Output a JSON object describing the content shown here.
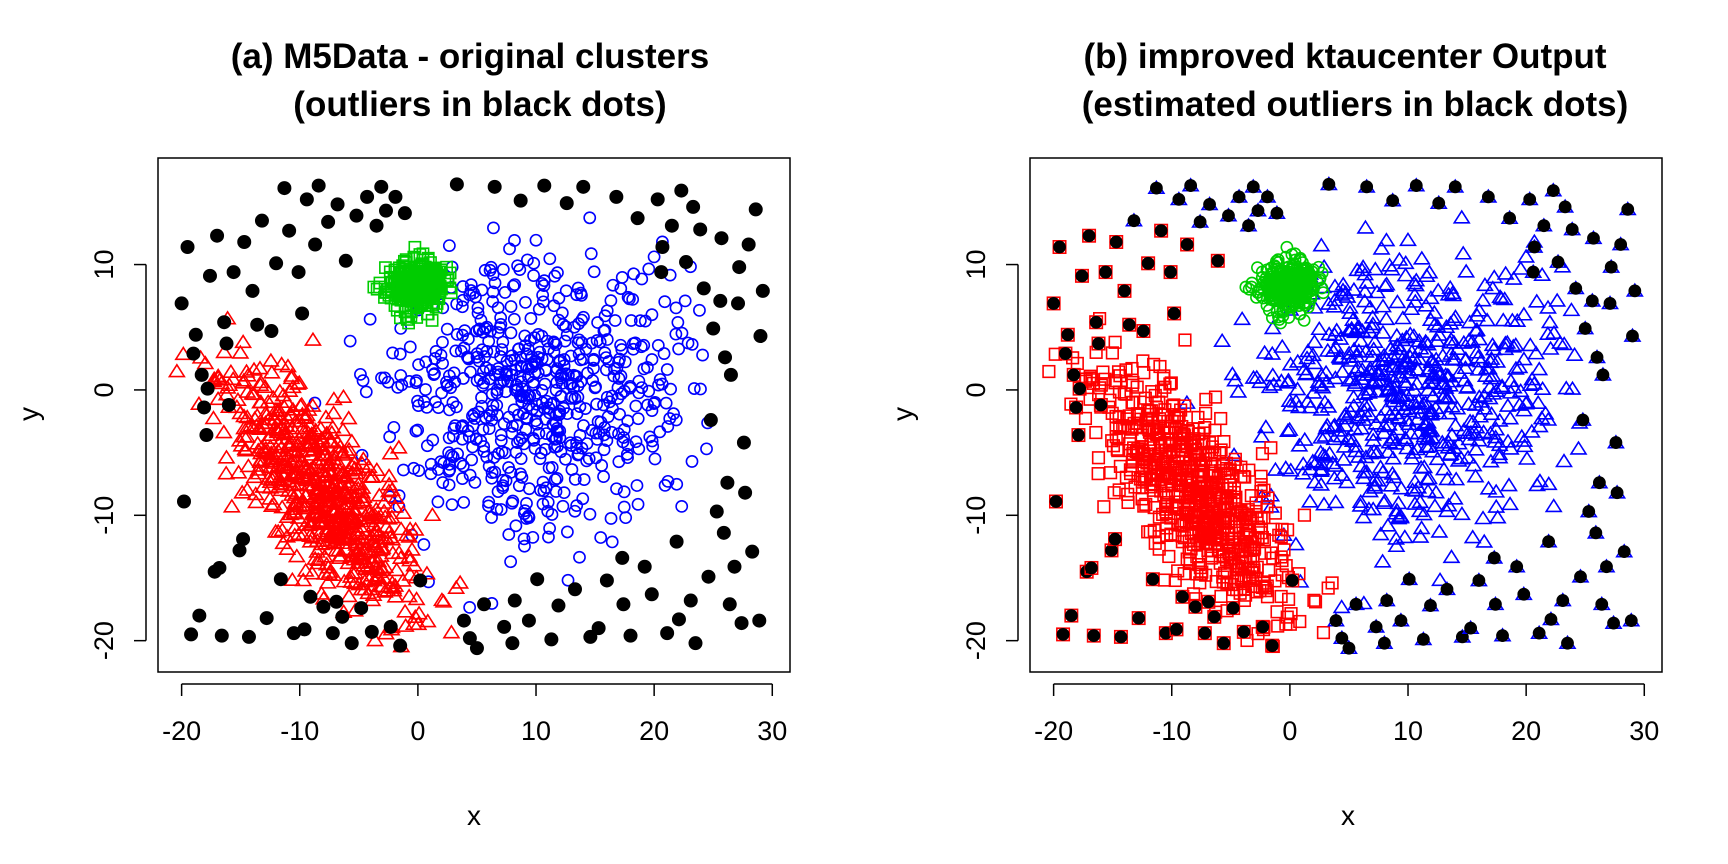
{
  "colors": {
    "outlier": "#000000",
    "cluster_red": "#ff0000",
    "cluster_green": "#00cc00",
    "cluster_blue": "#0000ff",
    "frame": "#000000"
  },
  "chart_data": [
    {
      "type": "scatter",
      "title_line1": "(a) M5Data - original clusters",
      "title_line2": "(outliers in black dots)",
      "xlabel": "x",
      "ylabel": "y",
      "xlim": [
        -22,
        31.5
      ],
      "ylim": [
        -22.5,
        18.5
      ],
      "xticks": [
        -20,
        -10,
        0,
        10,
        20,
        30
      ],
      "yticks": [
        -20,
        -10,
        0,
        10
      ],
      "xtick_labels": [
        "-20",
        "-10",
        "0",
        "10",
        "20",
        "30"
      ],
      "ytick_labels": [
        "-20",
        "-10",
        "0",
        "10"
      ],
      "grid": false,
      "marker_style": {
        "outliers": "filled-circle",
        "red": "open-triangle",
        "green": "open-square",
        "blue": "open-circle"
      },
      "series_spec": {
        "red": {
          "center": [
            -8,
            -8
          ],
          "sd_major": 5.6,
          "sd_minor": 2.3,
          "angle_deg": -52,
          "n": 700,
          "seed": 11
        },
        "green": {
          "center": [
            -0.2,
            8.3
          ],
          "sd_major": 1.2,
          "sd_minor": 1.0,
          "angle_deg": 0,
          "n": 300,
          "seed": 23
        },
        "blue": {
          "center": [
            10,
            0
          ],
          "sd_major": 6.0,
          "sd_minor": 5.5,
          "angle_deg": 10,
          "n": 650,
          "seed": 37
        }
      },
      "outliers": [
        [
          -20,
          6.9
        ],
        [
          -19.8,
          -8.9
        ],
        [
          -19.5,
          11.4
        ],
        [
          -19.2,
          -19.5
        ],
        [
          -19,
          2.9
        ],
        [
          -18.8,
          4.4
        ],
        [
          -18.5,
          -18
        ],
        [
          -18.3,
          1.2
        ],
        [
          -18.1,
          -1.4
        ],
        [
          -17.9,
          -3.6
        ],
        [
          -17.6,
          9.1
        ],
        [
          -17.2,
          -14.5
        ],
        [
          -17,
          12.3
        ],
        [
          -16.8,
          -14.2
        ],
        [
          -16.6,
          -19.6
        ],
        [
          -16.4,
          5.4
        ],
        [
          -16.2,
          3.7
        ],
        [
          -16,
          -1.2
        ],
        [
          -15.6,
          9.4
        ],
        [
          -15.1,
          -12.8
        ],
        [
          -14.7,
          11.8
        ],
        [
          -14.3,
          -19.7
        ],
        [
          -14,
          7.9
        ],
        [
          -13.6,
          5.2
        ],
        [
          -13.2,
          13.5
        ],
        [
          -12.8,
          -18.2
        ],
        [
          -12.4,
          4.7
        ],
        [
          -12,
          10.1
        ],
        [
          -11.6,
          -15.1
        ],
        [
          -11.3,
          16.1
        ],
        [
          -10.9,
          12.7
        ],
        [
          -10.5,
          -19.4
        ],
        [
          -10.1,
          9.4
        ],
        [
          -9.8,
          6.1
        ],
        [
          -9.4,
          15.2
        ],
        [
          -9.1,
          -16.5
        ],
        [
          -8.7,
          11.6
        ],
        [
          -8.4,
          16.3
        ],
        [
          -8,
          -17.3
        ],
        [
          -7.6,
          13.4
        ],
        [
          -7.2,
          -19.4
        ],
        [
          -6.8,
          14.8
        ],
        [
          -6.4,
          -18.1
        ],
        [
          -6.1,
          10.3
        ],
        [
          -5.6,
          -20.2
        ],
        [
          -5.2,
          13.9
        ],
        [
          -4.8,
          -17.4
        ],
        [
          -4.3,
          15.4
        ],
        [
          -3.9,
          -19.3
        ],
        [
          -3.5,
          13.1
        ],
        [
          -3.1,
          16.2
        ],
        [
          -2.7,
          14.3
        ],
        [
          -2.3,
          -18.9
        ],
        [
          -1.9,
          15.4
        ],
        [
          -1.5,
          -20.4
        ],
        [
          -1.1,
          14.1
        ],
        [
          3.3,
          16.4
        ],
        [
          3.9,
          -18.4
        ],
        [
          4.4,
          -19.8
        ],
        [
          5,
          -20.6
        ],
        [
          5.6,
          -17.1
        ],
        [
          6.5,
          16.2
        ],
        [
          7.3,
          -18.9
        ],
        [
          8,
          -20.2
        ],
        [
          8.7,
          15.1
        ],
        [
          9.4,
          -18.4
        ],
        [
          10.1,
          -15.1
        ],
        [
          10.7,
          16.3
        ],
        [
          11.3,
          -19.9
        ],
        [
          11.9,
          -17.2
        ],
        [
          12.6,
          14.9
        ],
        [
          13.3,
          -15.9
        ],
        [
          14,
          16.2
        ],
        [
          14.6,
          -19.7
        ],
        [
          15.3,
          -19
        ],
        [
          16,
          -15.2
        ],
        [
          16.8,
          15.4
        ],
        [
          17.4,
          -17.1
        ],
        [
          18,
          -19.6
        ],
        [
          18.6,
          13.7
        ],
        [
          19.2,
          -14.1
        ],
        [
          19.8,
          -16.3
        ],
        [
          20.3,
          15.2
        ],
        [
          20.7,
          11.4
        ],
        [
          21.1,
          -19.4
        ],
        [
          21.5,
          13.1
        ],
        [
          21.9,
          -12.1
        ],
        [
          22.3,
          15.9
        ],
        [
          22.7,
          10.2
        ],
        [
          23.1,
          -16.8
        ],
        [
          23.5,
          -20.2
        ],
        [
          23.9,
          12.8
        ],
        [
          24.2,
          8.1
        ],
        [
          24.6,
          -14.9
        ],
        [
          25,
          4.9
        ],
        [
          25.3,
          -9.7
        ],
        [
          25.6,
          7.1
        ],
        [
          25.9,
          -11.4
        ],
        [
          26.2,
          -7.4
        ],
        [
          26.5,
          1.2
        ],
        [
          26.8,
          -14.1
        ],
        [
          27.1,
          6.9
        ],
        [
          27.4,
          -18.6
        ],
        [
          27.7,
          -8.2
        ],
        [
          28,
          11.6
        ],
        [
          28.3,
          -12.9
        ],
        [
          28.6,
          14.4
        ],
        [
          28.9,
          -18.4
        ],
        [
          29.2,
          7.9
        ],
        [
          26.4,
          -17.1
        ],
        [
          27.6,
          -4.2
        ],
        [
          29,
          4.3
        ],
        [
          26,
          2.6
        ],
        [
          27.2,
          9.8
        ],
        [
          22.1,
          -18.3
        ],
        [
          24.8,
          -2.4
        ],
        [
          -14.8,
          -11.9
        ],
        [
          -17.8,
          0.1
        ],
        [
          20.6,
          9.4
        ],
        [
          17.3,
          -13.4
        ],
        [
          8.2,
          -16.8
        ],
        [
          -6.9,
          -16.9
        ],
        [
          -9.6,
          -19.1
        ],
        [
          0.2,
          -15.2
        ],
        [
          25.7,
          12.1
        ],
        [
          23.3,
          14.6
        ]
      ]
    },
    {
      "type": "scatter",
      "title_line1": "(b) improved ktaucenter Output",
      "title_line2": "(estimated outliers in black dots)",
      "xlabel": "x",
      "ylabel": "y",
      "xlim": [
        -22,
        31.5
      ],
      "ylim": [
        -22.5,
        18.5
      ],
      "xticks": [
        -20,
        -10,
        0,
        10,
        20,
        30
      ],
      "yticks": [
        -20,
        -10,
        0,
        10
      ],
      "xtick_labels": [
        "-20",
        "-10",
        "0",
        "10",
        "20",
        "30"
      ],
      "ytick_labels": [
        "-20",
        "-10",
        "0",
        "10"
      ],
      "grid": false,
      "marker_style": {
        "outliers": "filled-circle on cluster marker",
        "red": "open-square",
        "green": "open-circle",
        "blue": "open-triangle"
      },
      "note": "Same points as panel (a); cluster membership re-estimated: red squares (left), green circles, blue triangles (rest), estimated outliers drawn as black dots over the cluster marker."
    }
  ]
}
